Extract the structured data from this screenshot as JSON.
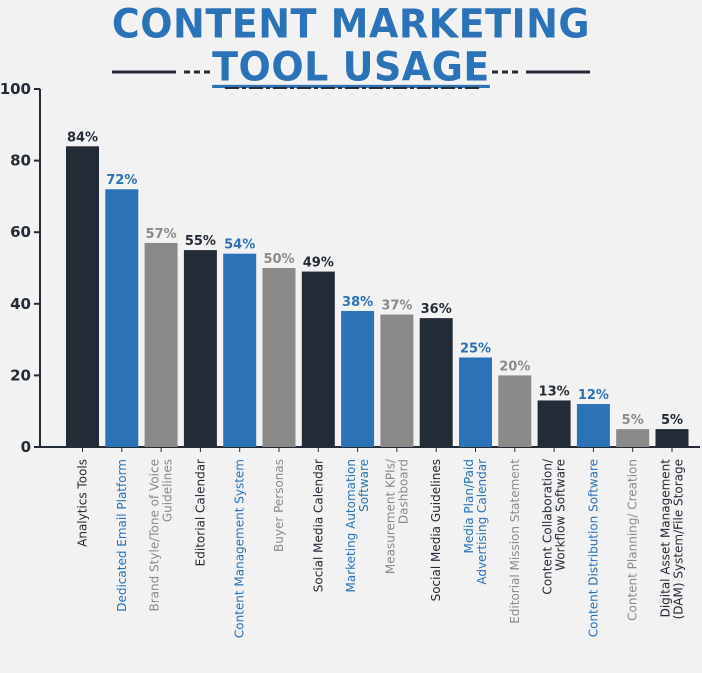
{
  "title": {
    "line1": "CONTENT MARKETING",
    "line2": "TOOL USAGE"
  },
  "colors": {
    "navy": "#232b36",
    "blue": "#2b73b6",
    "gray": "#8a8a8a",
    "title": "#2b73b6",
    "background": "#f2f2f2"
  },
  "chart_data": {
    "type": "bar",
    "title": "CONTENT MARKETING TOOL USAGE",
    "xlabel": "",
    "ylabel": "",
    "ylim": [
      0,
      100
    ],
    "yticks": [
      "0",
      "20",
      "40",
      "60",
      "80",
      "100"
    ],
    "grid": false,
    "categories": [
      "Analytics Tools",
      "Dedicated Email Platform",
      "Brand Style/Tone of Voice Guidelines",
      "Editorial Calendar",
      "Content Management System",
      "Buyer Personas",
      "Social Media Calendar",
      "Marketing Automation Software",
      "Measurement KPIs/ Dashboard",
      "Social Media Guidelines",
      "Media Plan/Paid Advertising Calendar",
      "Editorial Mission Statement",
      "Content Collaboration/ Workflow Software",
      "Content Distribution Software",
      "Content Planning/ Creation",
      "Digital Asset Management (DAM) System/File Storage"
    ],
    "category_lines": [
      [
        "Analytics Tools"
      ],
      [
        "Dedicated Email Platform"
      ],
      [
        "Brand Style/Tone of Voice",
        "Guidelines"
      ],
      [
        "Editorial Calendar"
      ],
      [
        "Content Management System"
      ],
      [
        "Buyer Personas"
      ],
      [
        "Social Media Calendar"
      ],
      [
        "Marketing Automation",
        "Software"
      ],
      [
        "Measurement KPIs/",
        "Dashboard"
      ],
      [
        "Social Media Guidelines"
      ],
      [
        "Media Plan/Paid",
        "Advertising Calendar"
      ],
      [
        "Editorial Mission Statement"
      ],
      [
        "Content Collaboration/",
        "Workflow Software"
      ],
      [
        "Content Distribution Software"
      ],
      [
        "Content Planning/ Creation"
      ],
      [
        "Digital Asset Management",
        "(DAM) System/File Storage"
      ]
    ],
    "values": [
      84,
      72,
      57,
      55,
      54,
      50,
      49,
      38,
      37,
      36,
      25,
      20,
      13,
      12,
      5,
      5
    ],
    "value_labels": [
      "84%",
      "72%",
      "57%",
      "55%",
      "54%",
      "50%",
      "49%",
      "38%",
      "37%",
      "36%",
      "25%",
      "20%",
      "13%",
      "12%",
      "5%",
      "5%"
    ],
    "bar_colors": [
      "navy",
      "blue",
      "gray",
      "navy",
      "blue",
      "gray",
      "navy",
      "blue",
      "gray",
      "navy",
      "blue",
      "gray",
      "navy",
      "blue",
      "gray",
      "navy"
    ]
  }
}
